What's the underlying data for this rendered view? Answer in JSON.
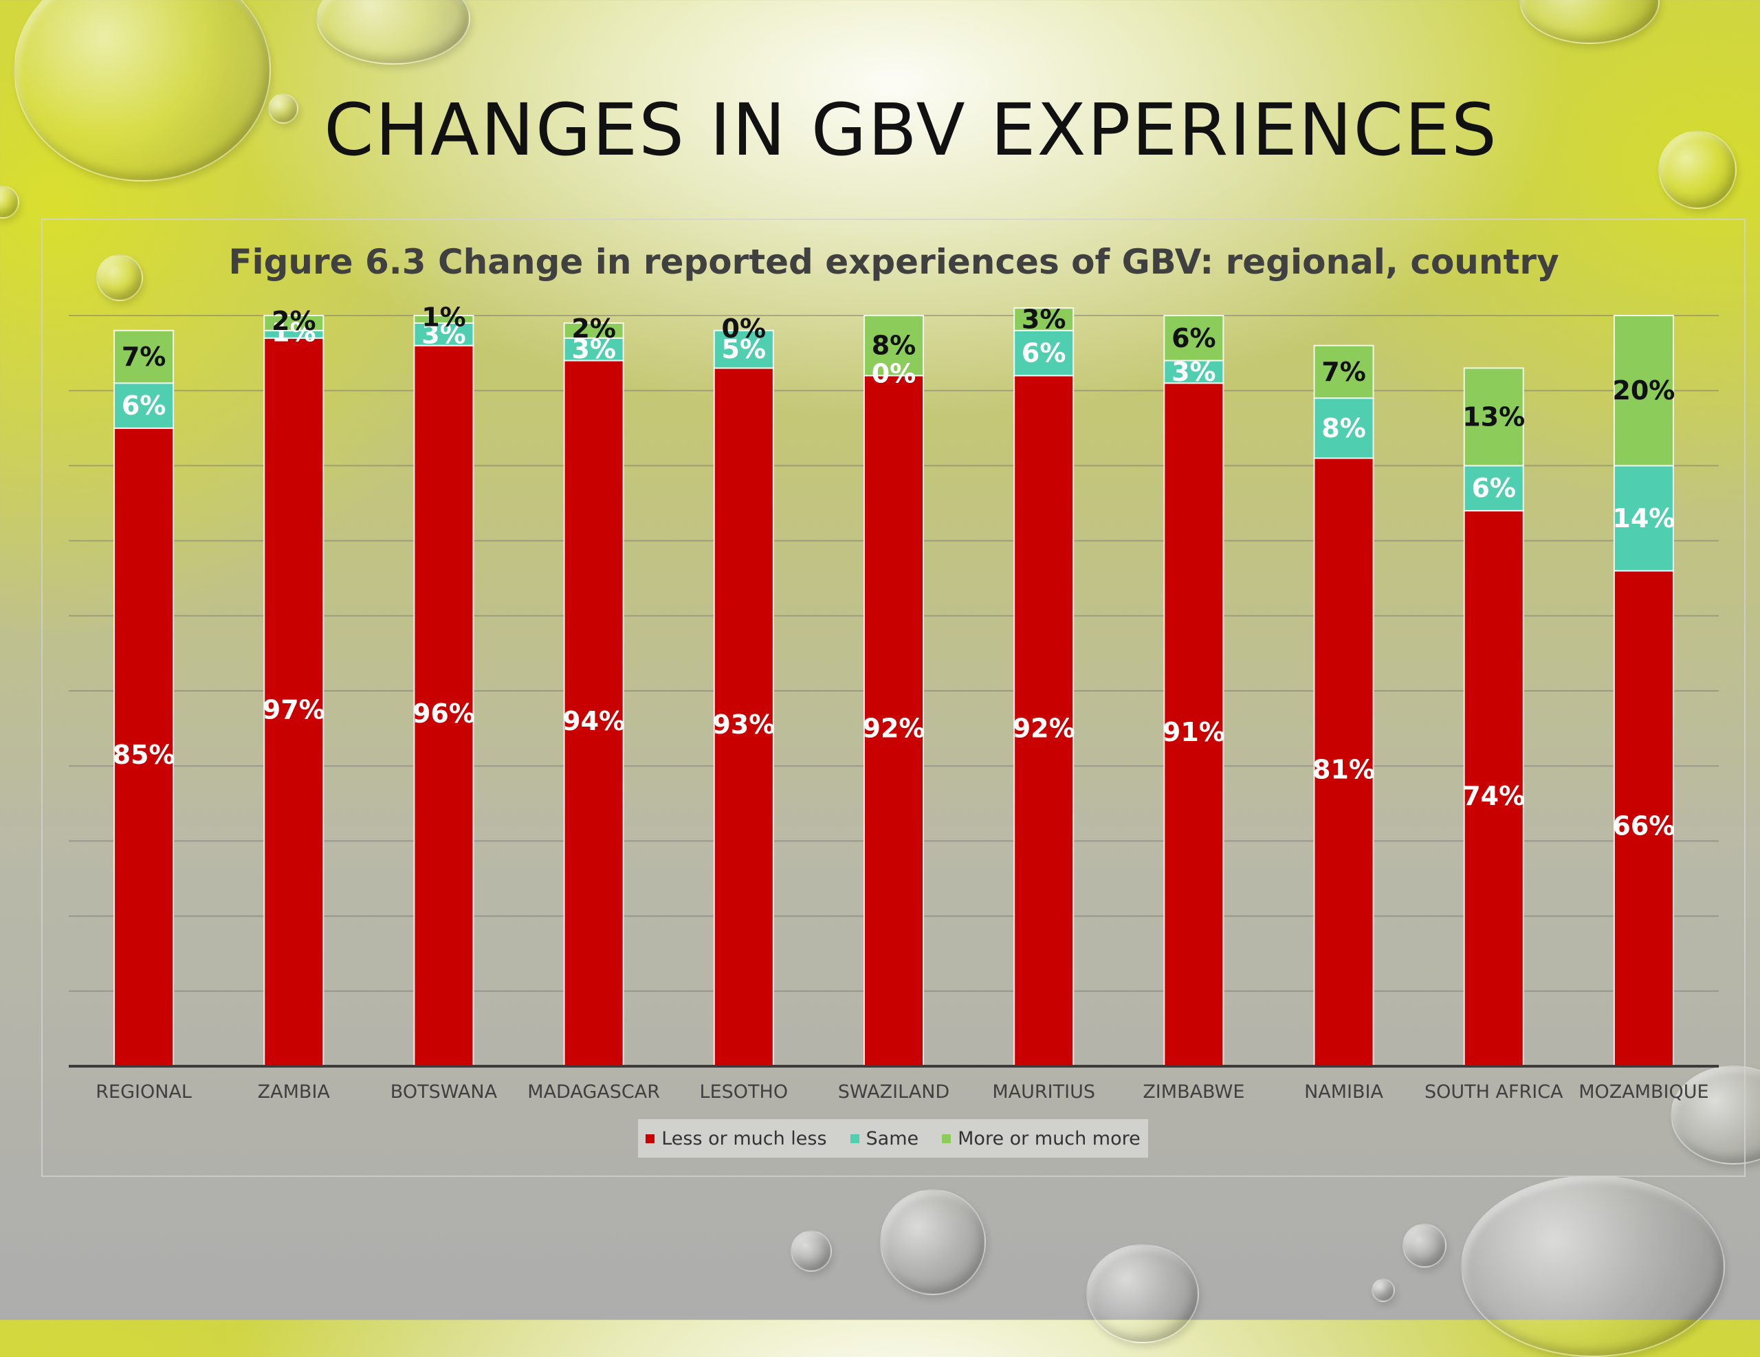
{
  "slide": {
    "title": "CHANGES IN GBV EXPERIENCES"
  },
  "chart_data": {
    "type": "bar",
    "stacked": true,
    "title": "Figure 6.3 Change in reported experiences of GBV: regional, country",
    "categories": [
      "REGIONAL",
      "ZAMBIA",
      "BOTSWANA",
      "MADAGASCAR",
      "LESOTHO",
      "SWAZILAND",
      "MAURITIUS",
      "ZIMBABWE",
      "NAMIBIA",
      "SOUTH AFRICA",
      "MOZAMBIQUE"
    ],
    "series": [
      {
        "name": "Less or much less",
        "color": "#c80000",
        "values": [
          85,
          97,
          96,
          94,
          93,
          92,
          92,
          91,
          81,
          74,
          66
        ],
        "labels": [
          "85%",
          "97%",
          "96%",
          "94%",
          "93%",
          "92%",
          "92%",
          "91%",
          "81%",
          "74%",
          "66%"
        ]
      },
      {
        "name": "Same",
        "color": "#4fcfb0",
        "values": [
          6,
          1,
          3,
          3,
          5,
          0,
          6,
          3,
          8,
          6,
          14
        ],
        "labels": [
          "6%",
          "1%",
          "3%",
          "3%",
          "5%",
          "0%",
          "6%",
          "3%",
          "8%",
          "6%",
          "14%"
        ]
      },
      {
        "name": "More or much more",
        "color": "#8ccc5a",
        "values": [
          7,
          2,
          1,
          2,
          0,
          8,
          3,
          6,
          7,
          13,
          20
        ],
        "labels": [
          "7%",
          "2%",
          "1%",
          "2%",
          "0%",
          "8%",
          "3%",
          "6%",
          "7%",
          "13%",
          "20%"
        ]
      }
    ],
    "ylim": [
      0,
      100
    ],
    "grid": true,
    "legend_position": "bottom"
  }
}
